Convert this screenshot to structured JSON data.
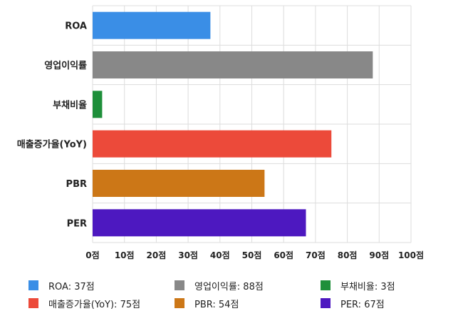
{
  "chart_data": {
    "type": "bar",
    "orientation": "horizontal",
    "categories": [
      "ROA",
      "영업이익률",
      "부채비율",
      "매출증가율(YoY)",
      "PBR",
      "PER"
    ],
    "values": [
      37,
      88,
      3,
      75,
      54,
      67
    ],
    "colors": [
      "#3a8ee6",
      "#888888",
      "#1e8f3a",
      "#ec4a3a",
      "#cc7717",
      "#4d18c0"
    ],
    "xlim": [
      0,
      100
    ],
    "ticks": [
      0,
      10,
      20,
      30,
      40,
      50,
      60,
      70,
      80,
      90,
      100
    ],
    "tick_labels": [
      "0점",
      "10점",
      "20점",
      "30점",
      "40점",
      "50점",
      "60점",
      "70점",
      "80점",
      "90점",
      "100점"
    ],
    "grid": true,
    "legend_position": "bottom",
    "legend": [
      {
        "label": "ROA: 37점",
        "color": "#3a8ee6"
      },
      {
        "label": "영업이익률: 88점",
        "color": "#888888"
      },
      {
        "label": "부채비율: 3점",
        "color": "#1e8f3a"
      },
      {
        "label": "매출증가율(YoY): 75점",
        "color": "#ec4a3a"
      },
      {
        "label": "PBR: 54점",
        "color": "#cc7717"
      },
      {
        "label": "PER: 67점",
        "color": "#4d18c0"
      }
    ]
  }
}
